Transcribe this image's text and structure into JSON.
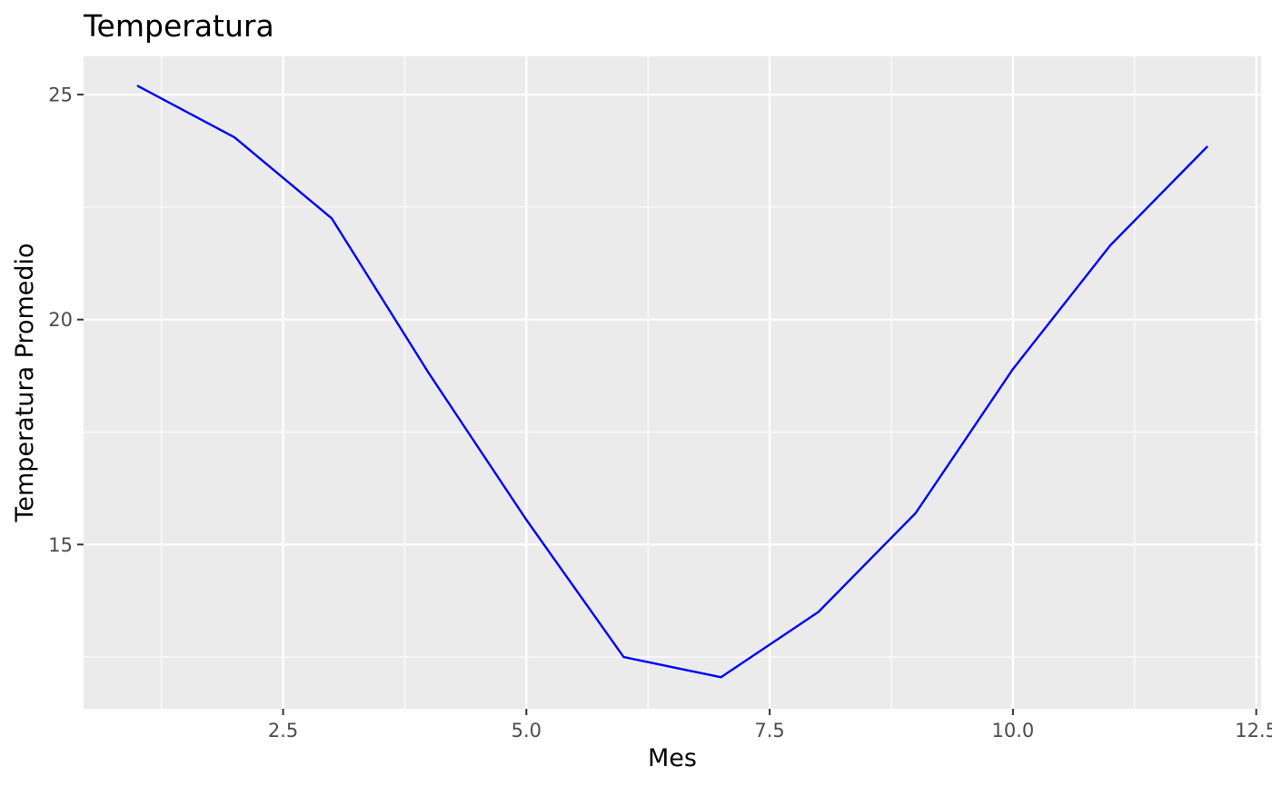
{
  "chart_data": {
    "type": "line",
    "title": "Temperatura",
    "xlabel": "Mes",
    "ylabel": "Temperatura Promedio",
    "xlim": [
      0.45,
      12.55
    ],
    "ylim": [
      11.35,
      25.85
    ],
    "x_ticks": [
      2.5,
      5.0,
      7.5,
      10.0,
      12.5
    ],
    "x_tick_labels": [
      "2.5",
      "5.0",
      "7.5",
      "10.0",
      "12.5"
    ],
    "y_ticks": [
      15,
      20,
      25
    ],
    "y_tick_labels": [
      "15",
      "20",
      "25"
    ],
    "grid": true,
    "legend": "none",
    "series": [
      {
        "color": "#0000ff",
        "x": [
          1,
          2,
          3,
          4,
          5,
          6,
          7,
          8,
          9,
          10,
          11,
          12
        ],
        "y": [
          25.2,
          24.05,
          22.25,
          18.8,
          15.55,
          12.5,
          12.05,
          13.5,
          15.7,
          18.9,
          21.65,
          23.85
        ]
      }
    ],
    "colors": {
      "panel_background": "#ebebeb",
      "grid": "#ffffff",
      "line": "#0000ff",
      "tick_label": "#4d4d4d",
      "tick_mark": "#333333"
    }
  }
}
